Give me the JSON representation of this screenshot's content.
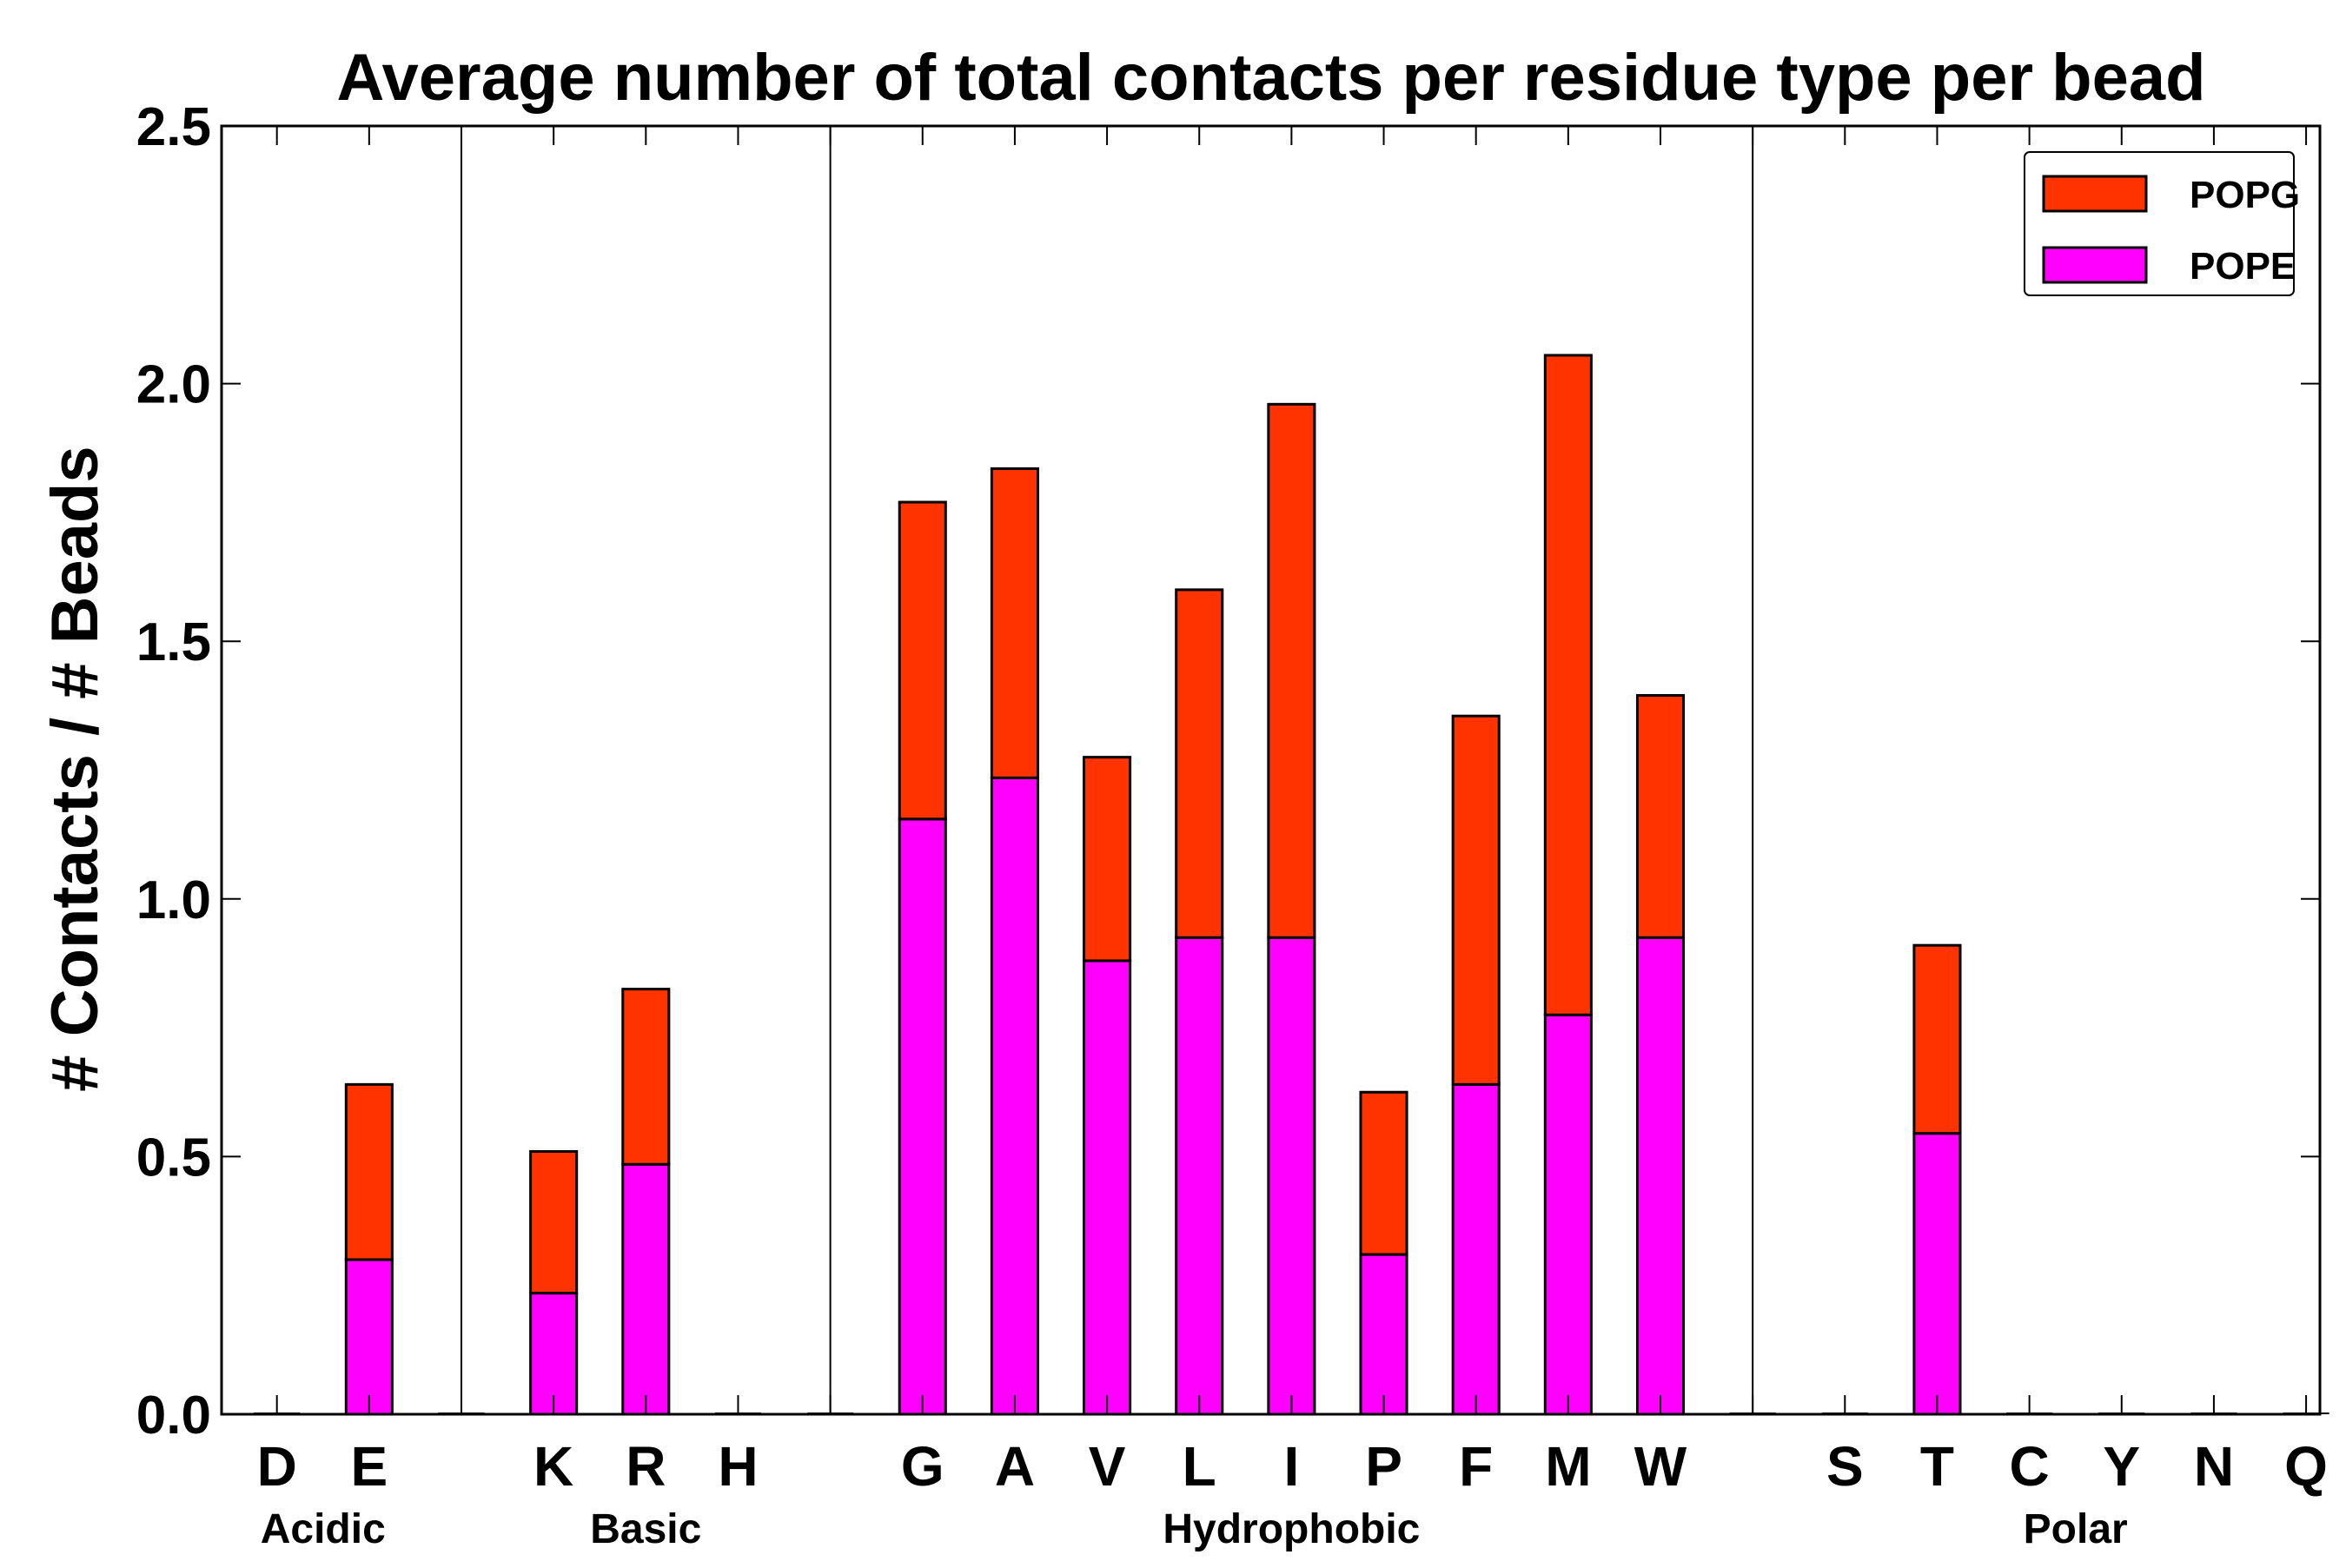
{
  "chart_data": {
    "type": "bar",
    "stacked": true,
    "title": "Average number of total contacts per residue type per bead",
    "xlabel": "",
    "ylabel": "# Contacts / # Beads",
    "ylim": [
      0,
      2.5
    ],
    "yticks": [
      "0.0",
      "0.5",
      "1.0",
      "1.5",
      "2.0",
      "2.5"
    ],
    "ytick_values": [
      0,
      0.5,
      1.0,
      1.5,
      2.0,
      2.5
    ],
    "grid": false,
    "legend_position": "top-right",
    "categories": [
      "D",
      "E",
      "",
      "K",
      "R",
      "H",
      "",
      "G",
      "A",
      "V",
      "L",
      "I",
      "P",
      "F",
      "M",
      "W",
      "",
      "S",
      "T",
      "C",
      "Y",
      "N",
      "Q"
    ],
    "series": [
      {
        "name": "POPE",
        "color": "#ff00ff",
        "values": [
          0,
          0.3,
          0,
          0.235,
          0.485,
          0,
          0,
          1.155,
          1.235,
          0.88,
          0.925,
          0.925,
          0.31,
          0.64,
          0.775,
          0.925,
          0,
          0,
          0.545,
          0,
          0,
          0,
          0
        ]
      },
      {
        "name": "POPG",
        "color": "#ff3300",
        "values": [
          0,
          0.34,
          0,
          0.275,
          0.34,
          0,
          0,
          0.615,
          0.6,
          0.395,
          0.675,
          1.035,
          0.315,
          0.715,
          1.28,
          0.47,
          0,
          0,
          0.365,
          0,
          0,
          0,
          0
        ]
      }
    ],
    "legend": [
      "POPG",
      "POPE"
    ],
    "groups": [
      {
        "label": "Acidic",
        "from": 0,
        "to": 1
      },
      {
        "label": "Basic",
        "from": 3,
        "to": 5
      },
      {
        "label": "Hydrophobic",
        "from": 7,
        "to": 15
      },
      {
        "label": "Polar",
        "from": 17,
        "to": 22
      }
    ],
    "group_separators_after": [
      2,
      6,
      16
    ]
  }
}
